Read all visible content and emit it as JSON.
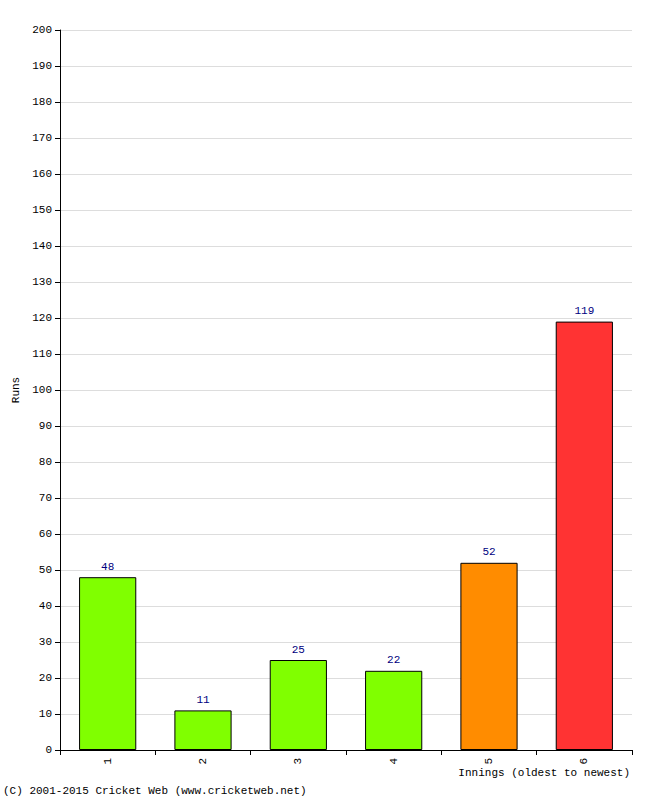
{
  "chart_data": {
    "type": "bar",
    "categories": [
      "1",
      "2",
      "3",
      "4",
      "5",
      "6"
    ],
    "values": [
      48,
      11,
      25,
      22,
      52,
      119
    ],
    "colors": [
      "#80ff00",
      "#80ff00",
      "#80ff00",
      "#80ff00",
      "#ff8c00",
      "#ff3333"
    ],
    "x_label": "Innings (oldest to newest)",
    "y_label": "Runs",
    "annotations": [
      "(C) 2001-2015 Cricket Web (www.cricketweb.net)"
    ],
    "ylim": [
      0,
      200
    ],
    "yticks": [
      0,
      10,
      20,
      30,
      40,
      50,
      60,
      70,
      80,
      90,
      100,
      110,
      120,
      130,
      140,
      150,
      160,
      170,
      180,
      190,
      200
    ],
    "grid": true,
    "data_labels": true
  }
}
